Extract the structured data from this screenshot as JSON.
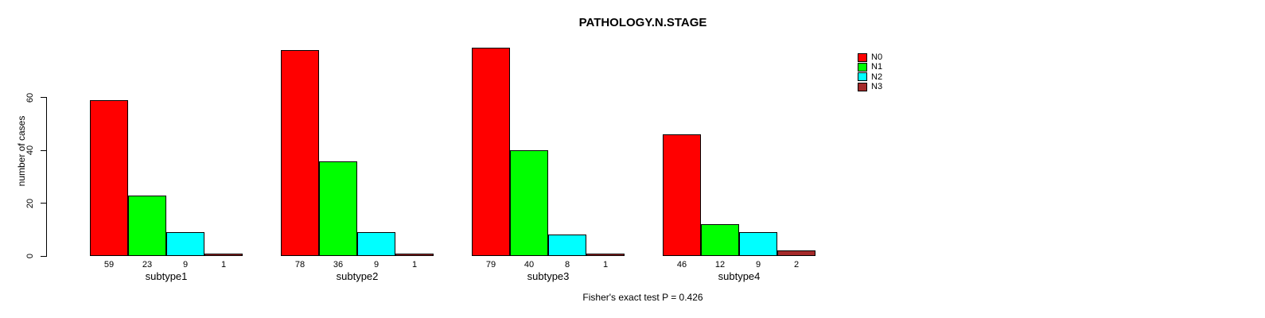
{
  "chart_data": {
    "type": "bar",
    "title": "PATHOLOGY.N.STAGE",
    "ylabel": "number of cases",
    "xlabel": "",
    "categories": [
      "subtype1",
      "subtype2",
      "subtype3",
      "subtype4"
    ],
    "series": [
      {
        "name": "N0",
        "color": "#FF0000",
        "values": [
          59,
          78,
          79,
          46
        ]
      },
      {
        "name": "N1",
        "color": "#00FF00",
        "values": [
          23,
          36,
          40,
          12
        ]
      },
      {
        "name": "N2",
        "color": "#00FFFF",
        "values": [
          9,
          9,
          8,
          9
        ]
      },
      {
        "name": "N3",
        "color": "#A52A2A",
        "values": [
          1,
          1,
          1,
          2
        ]
      }
    ],
    "yticks": [
      0,
      20,
      40,
      60
    ],
    "ylim": [
      0,
      80
    ],
    "bar_value_labels_shown": true,
    "grid": false,
    "legend_position": "top-right",
    "annotation": "Fisher's exact test P = 0.426"
  }
}
